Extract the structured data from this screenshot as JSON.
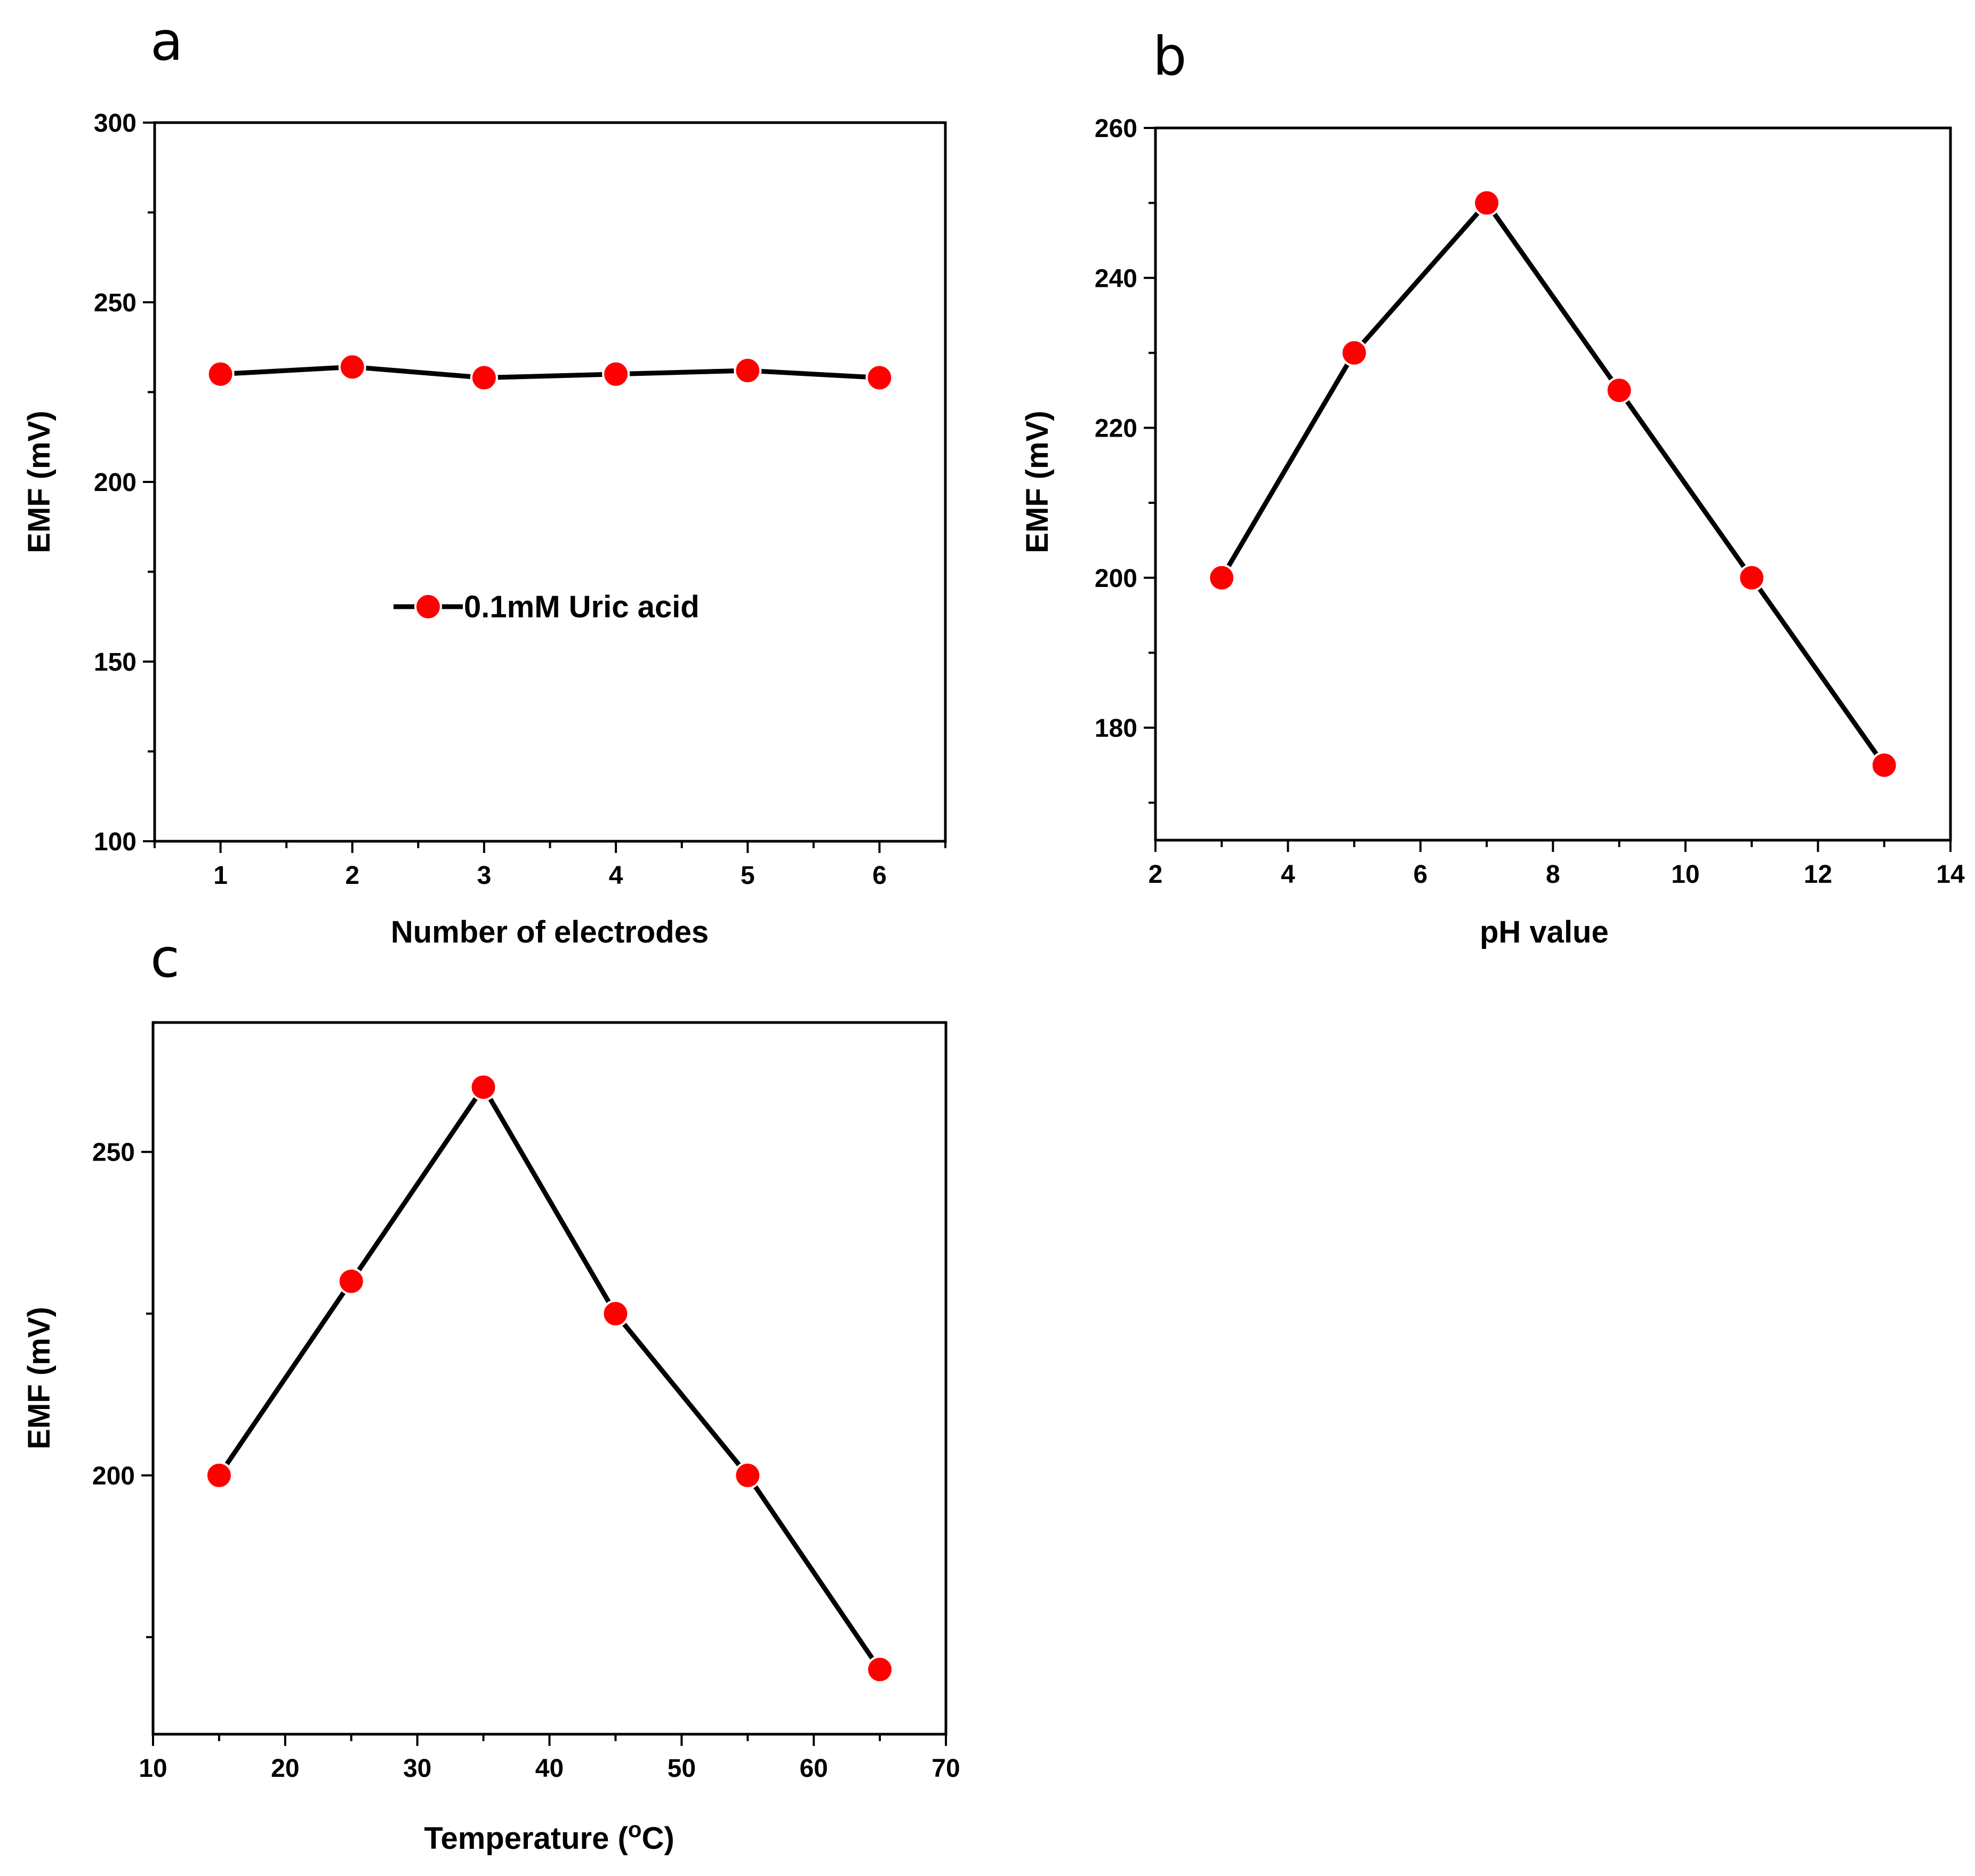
{
  "chart_data": [
    {
      "id": "a",
      "panel_label": "a",
      "type": "line",
      "x": [
        1,
        2,
        3,
        4,
        5,
        6
      ],
      "series": [
        {
          "name": "0.1mM Uric acid",
          "values": [
            230,
            232,
            229,
            230,
            231,
            229
          ]
        }
      ],
      "xlabel": "Number of electrodes",
      "ylabel": "EMF (mV)",
      "xlim": [
        0.5,
        6.5
      ],
      "ylim": [
        100,
        300
      ],
      "xticks": [
        1,
        2,
        3,
        4,
        5,
        6
      ],
      "yticks": [
        100,
        150,
        200,
        250,
        300
      ],
      "legend": {
        "label": "0.1mM Uric acid",
        "placement": "center"
      },
      "marker_color": "#ff0000",
      "line_color": "#000000"
    },
    {
      "id": "b",
      "panel_label": "b",
      "type": "line",
      "x": [
        3,
        5,
        7,
        9,
        11,
        13
      ],
      "series": [
        {
          "name": "EMF",
          "values": [
            200,
            230,
            250,
            225,
            200,
            175
          ]
        }
      ],
      "xlabel": "pH value",
      "ylabel": "EMF (mV)",
      "xlim": [
        2,
        14
      ],
      "ylim": [
        165,
        260
      ],
      "xticks": [
        2,
        4,
        6,
        8,
        10,
        12,
        14
      ],
      "yticks": [
        180,
        200,
        220,
        240,
        260
      ],
      "marker_color": "#ff0000",
      "line_color": "#000000"
    },
    {
      "id": "c",
      "panel_label": "c",
      "type": "line",
      "x": [
        15,
        25,
        35,
        45,
        55,
        65
      ],
      "series": [
        {
          "name": "EMF",
          "values": [
            200,
            230,
            260,
            225,
            200,
            170
          ]
        }
      ],
      "xlabel": "Temperature (",
      "xlabel_sup": "o",
      "xlabel_suffix": "C)",
      "ylabel": "EMF (mV)",
      "xlim": [
        10,
        70
      ],
      "ylim": [
        160,
        270
      ],
      "xticks": [
        10,
        20,
        30,
        40,
        50,
        60,
        70
      ],
      "yticks": [
        200,
        250
      ],
      "marker_color": "#ff0000",
      "line_color": "#000000"
    }
  ]
}
